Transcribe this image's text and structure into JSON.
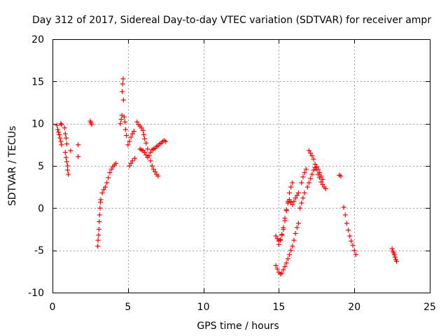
{
  "chart_data": {
    "type": "scatter",
    "title": "Day 312 of 2017, Sidereal Day-to-day VTEC variation (SDTVAR) for receiver ampr",
    "xlabel": "GPS time / hours",
    "ylabel": "SDTVAR / TECUs",
    "xlim": [
      0,
      25
    ],
    "ylim": [
      -10,
      20
    ],
    "xticks": [
      0,
      5,
      10,
      15,
      20,
      25
    ],
    "yticks": [
      -10,
      -5,
      0,
      5,
      10,
      15,
      20
    ],
    "xtick_labels": [
      "0",
      "5",
      "10",
      "15",
      "20",
      "25"
    ],
    "ytick_labels": [
      "-10",
      "-5",
      "0",
      "5",
      "10",
      "15",
      "20"
    ],
    "grid": true,
    "marker": "+",
    "color": "#ff0000",
    "segments": [
      [
        [
          0.3,
          9.8
        ],
        [
          0.35,
          9.3
        ],
        [
          0.4,
          9.0
        ],
        [
          0.45,
          8.7
        ],
        [
          0.5,
          8.3
        ],
        [
          0.55,
          7.9
        ],
        [
          0.6,
          7.5
        ]
      ],
      [
        [
          0.55,
          10.0
        ],
        [
          0.6,
          9.9
        ]
      ],
      [
        [
          0.8,
          9.5
        ],
        [
          0.85,
          8.8
        ],
        [
          0.9,
          8.3
        ],
        [
          0.95,
          7.6
        ],
        [
          0.85,
          6.6
        ],
        [
          0.9,
          6.0
        ],
        [
          0.95,
          5.5
        ],
        [
          1.0,
          5.0
        ],
        [
          1.0,
          4.5
        ],
        [
          1.05,
          4.0
        ]
      ],
      [
        [
          1.2,
          6.8
        ]
      ],
      [
        [
          1.7,
          7.5
        ],
        [
          1.7,
          6.1
        ]
      ],
      [
        [
          2.5,
          10.3
        ],
        [
          2.55,
          10.1
        ],
        [
          2.6,
          9.9
        ]
      ],
      [
        [
          3.0,
          -4.5
        ],
        [
          3.02,
          -3.8
        ],
        [
          3.05,
          -3.2
        ],
        [
          3.08,
          -2.5
        ],
        [
          3.1,
          -1.6
        ],
        [
          3.12,
          -0.8
        ],
        [
          3.15,
          0.0
        ],
        [
          3.18,
          0.7
        ],
        [
          3.2,
          1.0
        ],
        [
          3.3,
          1.8
        ],
        [
          3.4,
          2.2
        ],
        [
          3.5,
          2.5
        ],
        [
          3.6,
          3.0
        ],
        [
          3.7,
          3.6
        ],
        [
          3.8,
          4.2
        ],
        [
          3.9,
          4.6
        ],
        [
          4.0,
          4.9
        ],
        [
          4.1,
          5.1
        ],
        [
          4.2,
          5.3
        ]
      ],
      [
        [
          4.5,
          10.0
        ],
        [
          4.55,
          10.5
        ],
        [
          4.6,
          11.0
        ],
        [
          4.62,
          13.8
        ],
        [
          4.65,
          14.7
        ],
        [
          4.68,
          15.3
        ],
        [
          4.7,
          12.8
        ],
        [
          4.75,
          10.8
        ],
        [
          4.8,
          10.2
        ],
        [
          4.85,
          9.3
        ],
        [
          4.9,
          8.6
        ]
      ],
      [
        [
          5.0,
          7.5
        ],
        [
          5.1,
          7.9
        ],
        [
          5.2,
          8.4
        ],
        [
          5.3,
          8.8
        ],
        [
          5.4,
          9.1
        ]
      ],
      [
        [
          5.1,
          5.0
        ],
        [
          5.2,
          5.3
        ],
        [
          5.3,
          5.6
        ],
        [
          5.45,
          5.9
        ]
      ],
      [
        [
          5.6,
          10.2
        ],
        [
          5.7,
          9.9
        ],
        [
          5.8,
          9.7
        ],
        [
          5.9,
          9.5
        ],
        [
          6.0,
          9.2
        ],
        [
          6.05,
          8.7
        ],
        [
          6.1,
          8.2
        ],
        [
          6.2,
          7.7
        ],
        [
          6.3,
          7.0
        ],
        [
          6.4,
          6.2
        ],
        [
          6.5,
          5.6
        ],
        [
          6.6,
          5.0
        ],
        [
          6.7,
          4.6
        ],
        [
          6.8,
          4.3
        ],
        [
          6.9,
          4.0
        ],
        [
          7.0,
          3.8
        ]
      ],
      [
        [
          5.8,
          7.0
        ],
        [
          5.9,
          6.9
        ],
        [
          6.0,
          6.8
        ],
        [
          6.1,
          6.6
        ],
        [
          6.2,
          6.3
        ],
        [
          6.3,
          6.0
        ],
        [
          6.4,
          6.2
        ],
        [
          6.5,
          6.6
        ],
        [
          6.6,
          6.9
        ],
        [
          6.7,
          7.0
        ],
        [
          6.8,
          7.1
        ],
        [
          6.9,
          7.3
        ],
        [
          7.0,
          7.4
        ],
        [
          7.1,
          7.6
        ],
        [
          7.2,
          7.7
        ],
        [
          7.3,
          7.9
        ],
        [
          7.4,
          8.0
        ],
        [
          7.5,
          7.9
        ]
      ],
      [
        [
          14.8,
          -3.3
        ],
        [
          14.9,
          -3.6
        ],
        [
          15.0,
          -3.9
        ],
        [
          15.1,
          -3.7
        ],
        [
          15.2,
          -3.2
        ],
        [
          15.3,
          -2.5
        ],
        [
          15.4,
          -1.5
        ],
        [
          15.5,
          -0.3
        ],
        [
          15.6,
          0.8
        ],
        [
          15.7,
          1.8
        ],
        [
          15.8,
          2.5
        ],
        [
          15.9,
          3.0
        ]
      ],
      [
        [
          14.8,
          -6.8
        ],
        [
          14.9,
          -7.2
        ],
        [
          15.0,
          -7.6
        ],
        [
          15.1,
          -7.8
        ],
        [
          15.2,
          -7.7
        ],
        [
          15.3,
          -7.3
        ],
        [
          15.4,
          -6.9
        ],
        [
          15.5,
          -6.5
        ],
        [
          15.6,
          -6.0
        ],
        [
          15.7,
          -5.5
        ],
        [
          15.8,
          -5.0
        ],
        [
          15.9,
          -4.5
        ],
        [
          16.0,
          -3.8
        ],
        [
          16.1,
          -3.0
        ],
        [
          16.2,
          -2.3
        ],
        [
          16.3,
          -1.8
        ]
      ],
      [
        [
          15.0,
          -4.3
        ],
        [
          15.1,
          -3.8
        ],
        [
          15.2,
          -3.1
        ],
        [
          15.3,
          -2.3
        ],
        [
          15.4,
          -1.2
        ],
        [
          15.5,
          -0.2
        ],
        [
          15.6,
          0.6
        ],
        [
          15.7,
          1.0
        ],
        [
          15.8,
          0.7
        ],
        [
          15.9,
          0.4
        ],
        [
          16.0,
          0.8
        ],
        [
          16.1,
          1.2
        ],
        [
          16.2,
          1.5
        ],
        [
          16.3,
          1.8
        ]
      ],
      [
        [
          16.4,
          0.0
        ],
        [
          16.5,
          0.6
        ],
        [
          16.6,
          1.2
        ],
        [
          16.7,
          1.8
        ]
      ],
      [
        [
          16.5,
          3.0
        ],
        [
          16.6,
          3.7
        ],
        [
          16.7,
          4.2
        ],
        [
          16.8,
          4.6
        ]
      ],
      [
        [
          17.0,
          6.8
        ],
        [
          17.1,
          6.5
        ],
        [
          17.2,
          6.2
        ],
        [
          17.3,
          5.8
        ],
        [
          17.4,
          5.2
        ],
        [
          17.5,
          4.6
        ],
        [
          17.6,
          4.0
        ],
        [
          17.7,
          3.6
        ],
        [
          17.8,
          3.1
        ],
        [
          17.9,
          2.8
        ],
        [
          18.0,
          2.5
        ],
        [
          18.1,
          2.3
        ]
      ],
      [
        [
          16.9,
          2.5
        ],
        [
          17.0,
          3.0
        ],
        [
          17.1,
          3.5
        ],
        [
          17.2,
          4.0
        ],
        [
          17.3,
          4.5
        ],
        [
          17.4,
          4.8
        ],
        [
          17.5,
          4.9
        ],
        [
          17.6,
          4.6
        ],
        [
          17.7,
          4.2
        ],
        [
          17.8,
          3.8
        ],
        [
          17.9,
          3.4
        ]
      ],
      [
        [
          19.0,
          3.9
        ],
        [
          19.1,
          3.8
        ]
      ],
      [
        [
          19.3,
          0.1
        ],
        [
          19.4,
          -0.8
        ],
        [
          19.5,
          -1.8
        ],
        [
          19.6,
          -2.6
        ],
        [
          19.7,
          -3.3
        ],
        [
          19.8,
          -3.9
        ],
        [
          19.9,
          -4.4
        ],
        [
          20.0,
          -5.0
        ],
        [
          20.1,
          -5.5
        ]
      ],
      [
        [
          22.5,
          -4.8
        ],
        [
          22.55,
          -5.1
        ],
        [
          22.6,
          -5.3
        ],
        [
          22.65,
          -5.5
        ],
        [
          22.7,
          -5.8
        ],
        [
          22.75,
          -6.1
        ],
        [
          22.8,
          -6.3
        ]
      ]
    ]
  }
}
